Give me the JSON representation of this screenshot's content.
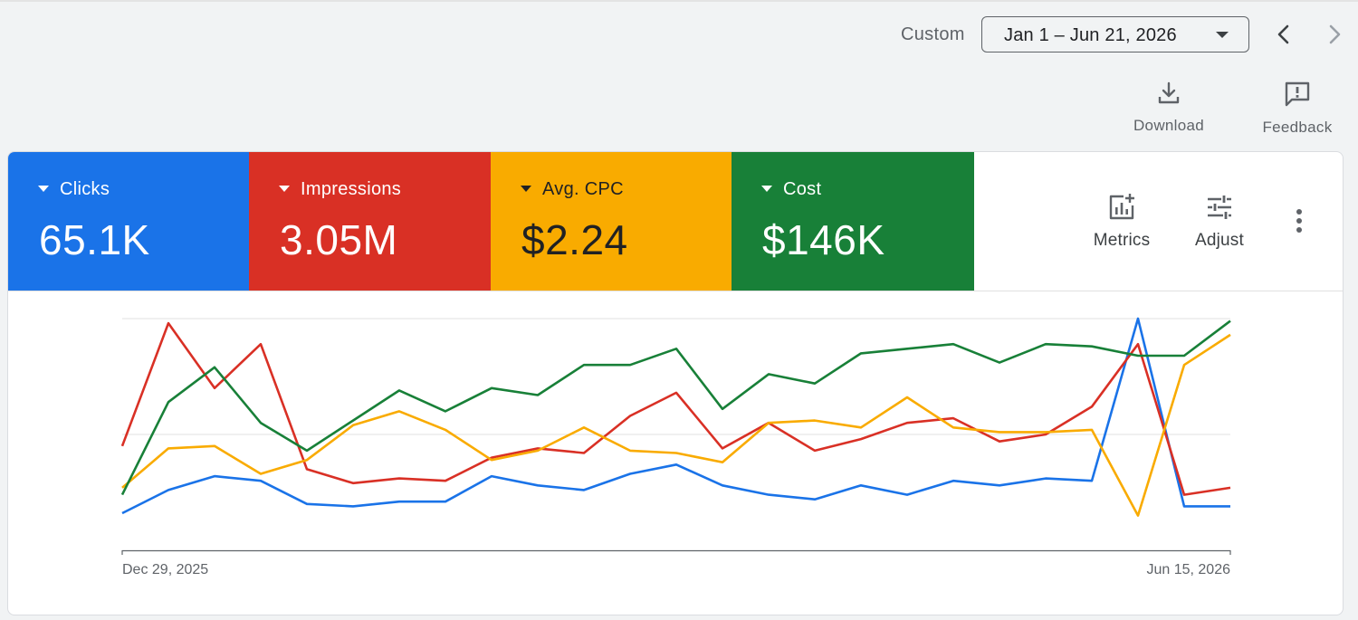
{
  "date_range": {
    "mode_label": "Custom",
    "value": "Jan 1 – Jun 21, 2026"
  },
  "toolbar": {
    "download_label": "Download",
    "feedback_label": "Feedback"
  },
  "metrics": [
    {
      "name": "Clicks",
      "value": "65.1K",
      "color": "#1a73e8"
    },
    {
      "name": "Impressions",
      "value": "3.05M",
      "color": "#d93025"
    },
    {
      "name": "Avg. CPC",
      "value": "$2.24",
      "color": "#f9ab00"
    },
    {
      "name": "Cost",
      "value": "$146K",
      "color": "#188038"
    }
  ],
  "card_controls": {
    "metrics_label": "Metrics",
    "adjust_label": "Adjust"
  },
  "icons": {
    "download": "download-icon",
    "feedback": "feedback-icon",
    "metrics": "chart-add-icon",
    "adjust": "tune-icon",
    "more": "more-vert-icon",
    "prev": "chevron-left-icon",
    "next": "chevron-right-icon"
  },
  "chart_data": {
    "type": "line",
    "x_start_label": "Dec 29, 2025",
    "x_end_label": "Jun 15, 2026",
    "points": 25,
    "ylim": [
      0,
      100
    ],
    "grid": true,
    "series": [
      {
        "metric": "Clicks",
        "color": "#1a73e8",
        "values": [
          16,
          26,
          32,
          30,
          20,
          19,
          21,
          21,
          32,
          28,
          26,
          33,
          37,
          28,
          24,
          22,
          28,
          24,
          30,
          28,
          31,
          30,
          100,
          19,
          19
        ]
      },
      {
        "metric": "Impressions",
        "color": "#d93025",
        "values": [
          45,
          98,
          70,
          89,
          35,
          29,
          31,
          30,
          40,
          44,
          42,
          58,
          68,
          44,
          55,
          43,
          48,
          55,
          57,
          47,
          50,
          62,
          89,
          24,
          27
        ]
      },
      {
        "metric": "Avg. CPC",
        "color": "#f9ab00",
        "values": [
          27,
          44,
          45,
          33,
          39,
          54,
          60,
          52,
          39,
          43,
          53,
          43,
          42,
          38,
          55,
          56,
          53,
          66,
          53,
          51,
          51,
          52,
          15,
          80,
          93
        ]
      },
      {
        "metric": "Cost",
        "color": "#188038",
        "values": [
          24,
          64,
          79,
          55,
          43,
          56,
          69,
          60,
          70,
          67,
          80,
          80,
          87,
          61,
          76,
          72,
          85,
          87,
          89,
          81,
          89,
          88,
          84,
          84,
          99
        ]
      }
    ]
  }
}
